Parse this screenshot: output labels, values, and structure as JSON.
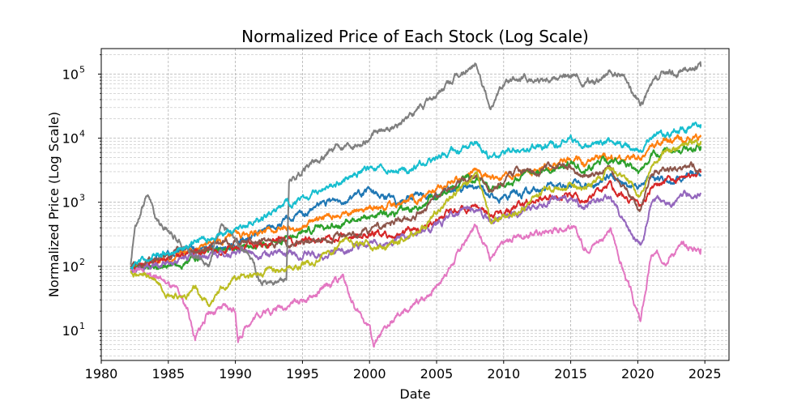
{
  "chart_data": {
    "type": "line",
    "title": "Normalized Price of Each Stock (Log Scale)",
    "xlabel": "Date",
    "ylabel": "Normalized Price (Log Scale)",
    "yscale": "log",
    "grid": true,
    "grid_minor": true,
    "xlim": [
      1980,
      2026.8
    ],
    "ylim": [
      3.4,
      250000
    ],
    "x_ticks": [
      1980,
      1985,
      1990,
      1995,
      2000,
      2005,
      2010,
      2015,
      2020,
      2025
    ],
    "x_tick_labels": [
      "1980",
      "1985",
      "1990",
      "1995",
      "2000",
      "2005",
      "2010",
      "2015",
      "2020",
      "2025"
    ],
    "y_ticks": [
      10,
      100,
      1000,
      10000,
      100000
    ],
    "y_tick_labels": [
      {
        "base": "10",
        "exp": "1"
      },
      {
        "base": "10",
        "exp": "2"
      },
      {
        "base": "10",
        "exp": "3"
      },
      {
        "base": "10",
        "exp": "4"
      },
      {
        "base": "10",
        "exp": "5"
      }
    ],
    "series": [
      {
        "color": "#1f77b4",
        "x": [
          1982.2,
          1984,
          1986,
          1988,
          1990,
          1992,
          1994,
          1996,
          1998,
          2000,
          2002,
          2004,
          2006,
          2008,
          2009,
          2011,
          2013,
          2015,
          2016,
          2018,
          2020.2,
          2021,
          2022,
          2023,
          2024.7
        ],
        "y": [
          95,
          130,
          160,
          190,
          230,
          350,
          500,
          800,
          1200,
          1400,
          1100,
          1250,
          1550,
          1800,
          1250,
          1300,
          1600,
          1900,
          1700,
          2400,
          1800,
          2500,
          2300,
          2500,
          2700
        ]
      },
      {
        "color": "#ff7f0e",
        "x": [
          1982.2,
          1984,
          1986,
          1988,
          1990,
          1992,
          1994,
          1996,
          1998,
          2000,
          2002,
          2004,
          2006,
          2008,
          2009,
          2011,
          2013,
          2015,
          2016,
          2018,
          2020.2,
          2021,
          2022,
          2023,
          2024.7
        ],
        "y": [
          100,
          115,
          170,
          210,
          270,
          330,
          400,
          500,
          700,
          850,
          900,
          1200,
          2000,
          3300,
          2200,
          2800,
          3300,
          4700,
          4000,
          5000,
          4600,
          7500,
          8500,
          9500,
          10500
        ]
      },
      {
        "color": "#2ca02c",
        "x": [
          1982.2,
          1984,
          1986,
          1988,
          1990,
          1992,
          1994,
          1996,
          1998,
          2000,
          2002,
          2004,
          2006,
          2008,
          2009,
          2011,
          2013,
          2015,
          2016,
          2018,
          2020.2,
          2021,
          2022,
          2023,
          2024.7
        ],
        "y": [
          90,
          100,
          110,
          150,
          200,
          220,
          280,
          380,
          480,
          600,
          650,
          900,
          1600,
          2500,
          1800,
          2300,
          3000,
          4000,
          3300,
          4500,
          3000,
          5500,
          5800,
          6500,
          7500
        ]
      },
      {
        "color": "#d62728",
        "x": [
          1982.2,
          1984,
          1986,
          1988,
          1990,
          1992,
          1994,
          1996,
          1998,
          2000,
          2002,
          2004,
          2006,
          2008,
          2009,
          2011,
          2013,
          2015,
          2016,
          2018,
          2020.2,
          2021,
          2022,
          2023,
          2024.7
        ],
        "y": [
          85,
          120,
          150,
          180,
          200,
          210,
          250,
          260,
          300,
          330,
          300,
          420,
          700,
          800,
          700,
          900,
          1200,
          1300,
          1100,
          1600,
          900,
          1800,
          2000,
          2200,
          2900
        ]
      },
      {
        "color": "#9467bd",
        "x": [
          1982.2,
          1984,
          1986,
          1988,
          1990,
          1992,
          1994,
          1996,
          1998,
          2000,
          2002,
          2004,
          2006,
          2008,
          2009,
          2011,
          2013,
          2015,
          2016,
          2018,
          2020.2,
          2021,
          2022,
          2023,
          2024.7
        ],
        "y": [
          80,
          100,
          130,
          150,
          170,
          160,
          160,
          150,
          170,
          220,
          230,
          320,
          600,
          800,
          500,
          700,
          1000,
          1100,
          800,
          1100,
          200,
          900,
          1000,
          1200,
          1400
        ]
      },
      {
        "color": "#8c564b",
        "x": [
          1982.2,
          1984,
          1986,
          1988,
          1990,
          1992,
          1994,
          1996,
          1998,
          2000,
          2002,
          2004,
          2006,
          2008,
          2009,
          2011,
          2013,
          2015,
          2016,
          2018,
          2020.2,
          2021,
          2022,
          2023,
          2024.7
        ],
        "y": [
          100,
          130,
          180,
          210,
          250,
          230,
          230,
          260,
          300,
          380,
          500,
          800,
          1800,
          2600,
          1300,
          2800,
          3500,
          3500,
          2600,
          3200,
          800,
          3000,
          3500,
          3200,
          3300
        ]
      },
      {
        "color": "#e377c2",
        "x": [
          1982.2,
          1984,
          1985.5,
          1986.5,
          1987,
          1988,
          1989,
          1990,
          1990.2,
          1991,
          1992,
          1994,
          1996,
          1998,
          1999,
          2000,
          2000.3,
          2002,
          2004,
          2006,
          2008,
          2009,
          2011,
          2013,
          2015,
          2016,
          2018,
          2020.2,
          2021,
          2022,
          2023,
          2024.7
        ],
        "y": [
          85,
          80,
          40,
          20,
          7,
          20,
          21,
          21,
          7,
          14,
          20,
          26,
          35,
          70,
          20,
          12,
          6,
          15,
          30,
          100,
          450,
          150,
          300,
          350,
          450,
          200,
          350,
          13,
          140,
          140,
          200,
          190
        ]
      },
      {
        "color": "#7f7f7f",
        "x": [
          1982.2,
          1982.5,
          1983,
          1983.5,
          1984,
          1985,
          1986,
          1987,
          1988,
          1989,
          1990,
          1991,
          1992,
          1993,
          1993.8,
          1994,
          1995,
          1996,
          1998,
          2000,
          2002,
          2004,
          2006,
          2008,
          2009,
          2010,
          2012,
          2014,
          2016,
          2018,
          2019,
          2020.2,
          2021,
          2022,
          2023,
          2024.7
        ],
        "y": [
          100,
          400,
          900,
          1500,
          600,
          350,
          250,
          150,
          110,
          500,
          220,
          150,
          60,
          60,
          60,
          2200,
          3000,
          4500,
          8000,
          10000,
          16000,
          30000,
          70000,
          140000,
          30000,
          70000,
          80000,
          100000,
          75000,
          90000,
          90000,
          30000,
          60000,
          100000,
          110000,
          130000
        ]
      },
      {
        "color": "#bcbd22",
        "x": [
          1982.2,
          1984,
          1985,
          1986,
          1987,
          1988,
          1990,
          1992,
          1994,
          1996,
          1998,
          2000,
          2002,
          2004,
          2006,
          2008,
          2009,
          2011,
          2013,
          2015,
          2016,
          2018,
          2020.2,
          2021,
          2022,
          2023,
          2024.7
        ],
        "y": [
          80,
          60,
          40,
          30,
          40,
          25,
          70,
          80,
          100,
          120,
          250,
          200,
          230,
          400,
          1200,
          2500,
          500,
          700,
          1600,
          2000,
          1500,
          3600,
          1200,
          4000,
          6500,
          7500,
          9000
        ]
      },
      {
        "color": "#17becf",
        "x": [
          1982.2,
          1984,
          1986,
          1988,
          1990,
          1992,
          1994,
          1996,
          1998,
          2000,
          2002,
          2004,
          2006,
          2008,
          2009,
          2011,
          2013,
          2015,
          2016,
          2018,
          2020.2,
          2021,
          2022,
          2023,
          2024.7
        ],
        "y": [
          100,
          140,
          200,
          260,
          420,
          600,
          900,
          1400,
          2300,
          3400,
          3000,
          4000,
          5800,
          7500,
          5000,
          6000,
          7500,
          9500,
          7500,
          9000,
          6500,
          11000,
          11500,
          13500,
          16500
        ]
      }
    ]
  }
}
